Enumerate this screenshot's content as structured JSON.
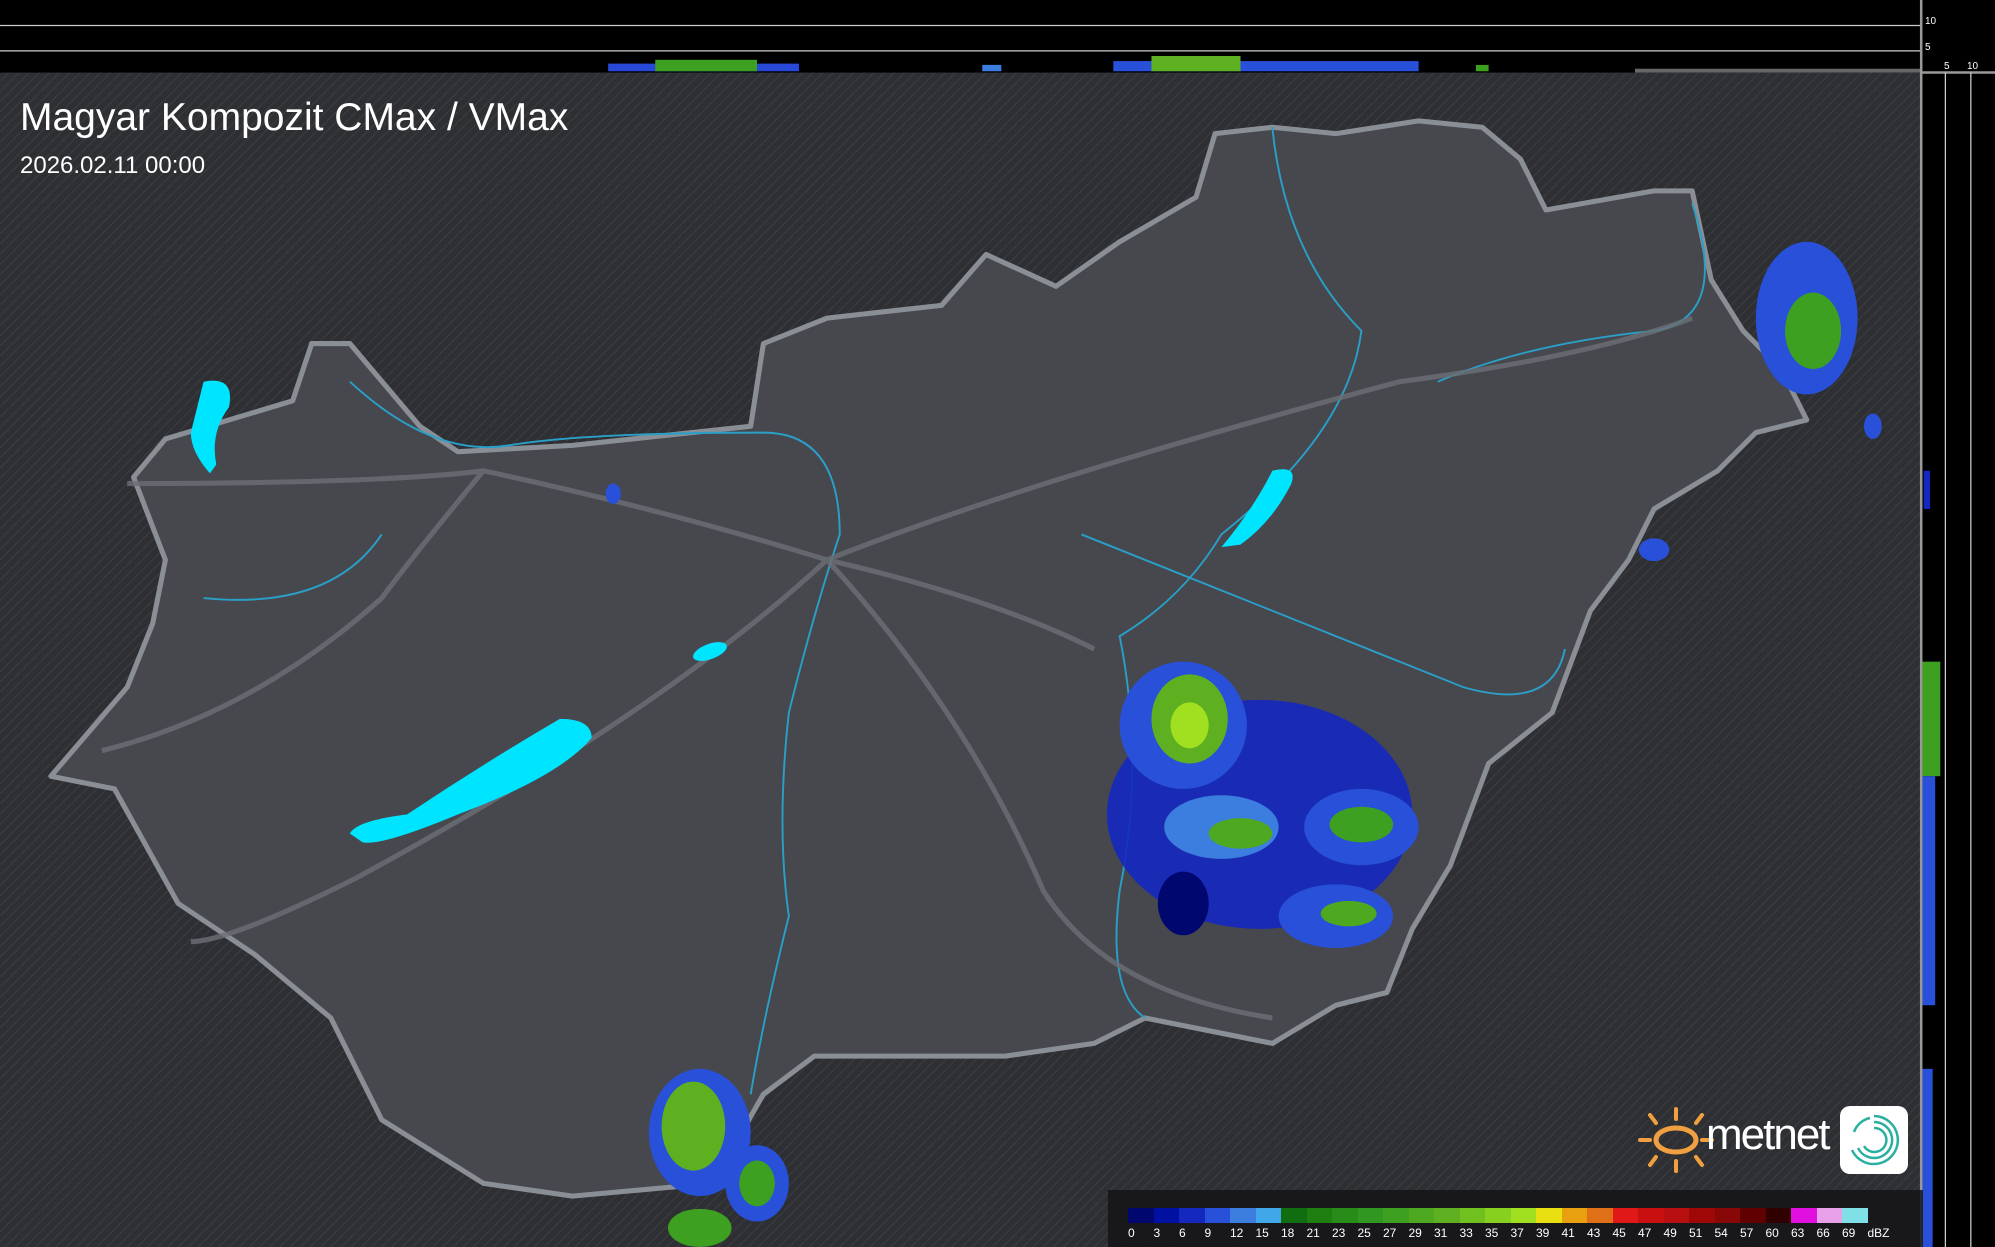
{
  "header": {
    "title": "Magyar Kompozit CMax / VMax",
    "timestamp": "2026.02.11 00:00"
  },
  "side_profiles": {
    "top_axis_labels": [
      "10",
      "5"
    ],
    "right_axis_labels": [
      "5",
      "10"
    ]
  },
  "legend": {
    "unit": "dBZ",
    "labels": [
      "0",
      "3",
      "6",
      "9",
      "12",
      "15",
      "18",
      "21",
      "23",
      "25",
      "27",
      "29",
      "31",
      "33",
      "35",
      "37",
      "39",
      "41",
      "43",
      "45",
      "47",
      "49",
      "51",
      "54",
      "57",
      "60",
      "63",
      "66",
      "69"
    ],
    "colors": [
      "#000870",
      "#0010a0",
      "#1428c0",
      "#2850d8",
      "#3c7ee0",
      "#40a8e8",
      "#106e10",
      "#1e7e10",
      "#288c18",
      "#309820",
      "#3ea020",
      "#4ea820",
      "#5eb020",
      "#70c020",
      "#88d020",
      "#a0e020",
      "#e8e010",
      "#e8a010",
      "#e07018",
      "#e01818",
      "#c81010",
      "#b81010",
      "#a00808",
      "#880808",
      "#600000",
      "#300000",
      "#e010e0",
      "#e8a0e8",
      "#80e0e8"
    ]
  },
  "branding": {
    "logo_text": "metnet",
    "accent": "#f0a040"
  },
  "colors": {
    "lake": "#00e5ff",
    "border": "#8a8f96",
    "river": "#2a9fc8",
    "country_fill": "#4a4c52"
  }
}
